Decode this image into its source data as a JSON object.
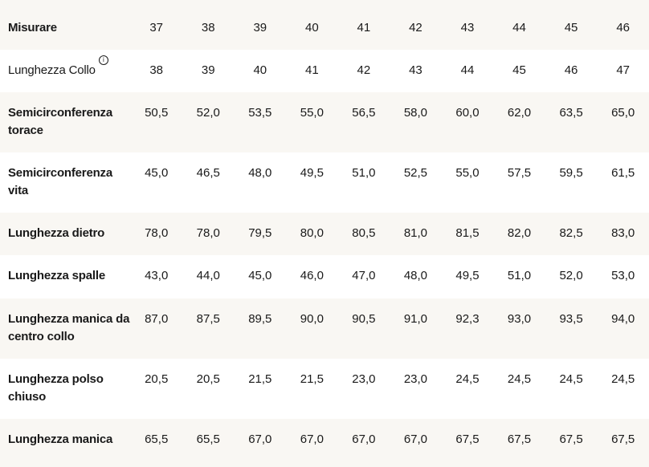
{
  "table": {
    "rows": [
      {
        "label": "Misurare",
        "values": [
          "37",
          "38",
          "39",
          "40",
          "41",
          "42",
          "43",
          "44",
          "45",
          "46"
        ]
      },
      {
        "label": "Lunghezza Collo",
        "info_icon": "info-icon",
        "values": [
          "38",
          "39",
          "40",
          "41",
          "42",
          "43",
          "44",
          "45",
          "46",
          "47"
        ]
      },
      {
        "label": "Semicirconferenza torace",
        "values": [
          "50,5",
          "52,0",
          "53,5",
          "55,0",
          "56,5",
          "58,0",
          "60,0",
          "62,0",
          "63,5",
          "65,0"
        ]
      },
      {
        "label": "Semicirconferenza vita",
        "values": [
          "45,0",
          "46,5",
          "48,0",
          "49,5",
          "51,0",
          "52,5",
          "55,0",
          "57,5",
          "59,5",
          "61,5"
        ]
      },
      {
        "label": "Lunghezza dietro",
        "values": [
          "78,0",
          "78,0",
          "79,5",
          "80,0",
          "80,5",
          "81,0",
          "81,5",
          "82,0",
          "82,5",
          "83,0"
        ]
      },
      {
        "label": "Lunghezza spalle",
        "values": [
          "43,0",
          "44,0",
          "45,0",
          "46,0",
          "47,0",
          "48,0",
          "49,5",
          "51,0",
          "52,0",
          "53,0"
        ]
      },
      {
        "label": "Lunghezza manica da centro collo",
        "values": [
          "87,0",
          "87,5",
          "89,5",
          "90,0",
          "90,5",
          "91,0",
          "92,3",
          "93,0",
          "93,5",
          "94,0"
        ]
      },
      {
        "label": "Lunghezza polso chiuso",
        "values": [
          "20,5",
          "20,5",
          "21,5",
          "21,5",
          "23,0",
          "23,0",
          "24,5",
          "24,5",
          "24,5",
          "24,5"
        ]
      },
      {
        "label": "Lunghezza manica",
        "values": [
          "65,5",
          "65,5",
          "67,0",
          "67,0",
          "67,0",
          "67,0",
          "67,5",
          "67,5",
          "67,5",
          "67,5"
        ]
      }
    ]
  },
  "colors": {
    "alt_row": "#f9f7f3",
    "text": "#1a1a1a"
  }
}
